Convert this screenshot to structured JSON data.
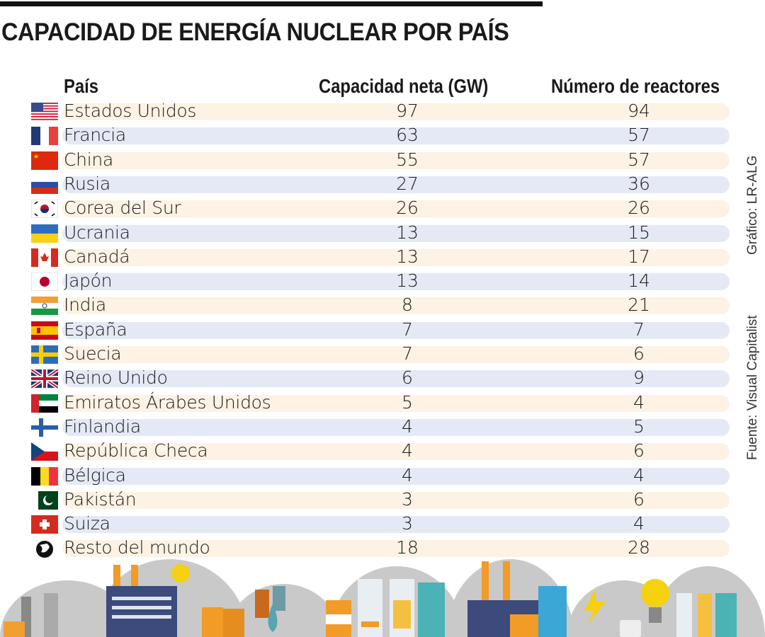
{
  "title": "CAPACIDAD DE ENERGÍA NUCLEAR POR PAÍS",
  "credit": "Gráfico: LR-ALG",
  "source": "Fuente: Visual Capitalist",
  "colors": {
    "row_odd": "#fdf2e3",
    "row_even": "#e5e9f5",
    "text": "#1a1a1a"
  },
  "chart_data": {
    "type": "table",
    "columns": [
      "País",
      "Capacidad neta (GW)",
      "Número de reactores"
    ],
    "rows": [
      {
        "flag": "usa",
        "country": "Estados Unidos",
        "capacity_gw": "97",
        "reactors": "94"
      },
      {
        "flag": "france",
        "country": "Francia",
        "capacity_gw": "63",
        "reactors": "57"
      },
      {
        "flag": "china",
        "country": "China",
        "capacity_gw": "55",
        "reactors": "57"
      },
      {
        "flag": "russia",
        "country": "Rusia",
        "capacity_gw": "27",
        "reactors": "36"
      },
      {
        "flag": "south-korea",
        "country": "Corea del Sur",
        "capacity_gw": "26",
        "reactors": "26"
      },
      {
        "flag": "ukraine",
        "country": "Ucrania",
        "capacity_gw": "13",
        "reactors": "15"
      },
      {
        "flag": "canada",
        "country": "Canadá",
        "capacity_gw": "13",
        "reactors": "17"
      },
      {
        "flag": "japan",
        "country": "Japón",
        "capacity_gw": "13",
        "reactors": "14"
      },
      {
        "flag": "india",
        "country": "India",
        "capacity_gw": "8",
        "reactors": "21"
      },
      {
        "flag": "spain",
        "country": "España",
        "capacity_gw": "7",
        "reactors": "7"
      },
      {
        "flag": "sweden",
        "country": "Suecia",
        "capacity_gw": "7",
        "reactors": "6"
      },
      {
        "flag": "uk",
        "country": "Reino Unido",
        "capacity_gw": "6",
        "reactors": "9"
      },
      {
        "flag": "uae",
        "country": "Emiratos Árabes Unidos",
        "capacity_gw": "5",
        "reactors": "4"
      },
      {
        "flag": "finland",
        "country": "Finlandia",
        "capacity_gw": "4",
        "reactors": "5"
      },
      {
        "flag": "czech",
        "country": "República Checa",
        "capacity_gw": "4",
        "reactors": "6"
      },
      {
        "flag": "belgium",
        "country": "Bélgica",
        "capacity_gw": "4",
        "reactors": "4"
      },
      {
        "flag": "pakistan",
        "country": "Pakistán",
        "capacity_gw": "3",
        "reactors": "6"
      },
      {
        "flag": "switzerland",
        "country": "Suiza",
        "capacity_gw": "3",
        "reactors": "4"
      },
      {
        "flag": "globe",
        "country": "Resto del mundo",
        "capacity_gw": "18",
        "reactors": "28"
      }
    ]
  }
}
